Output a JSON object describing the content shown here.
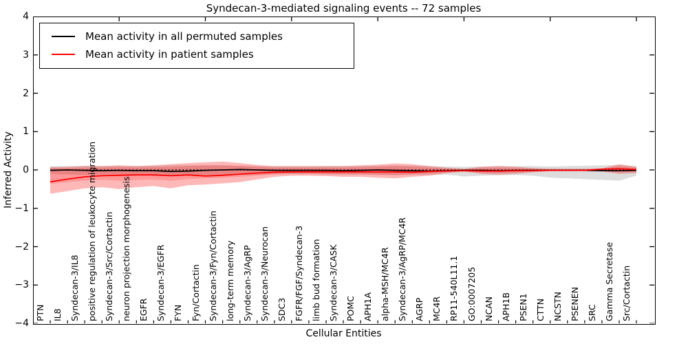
{
  "title": "Syndecan-3-mediated signaling events -- 72 samples",
  "axes": {
    "ylabel": "Inferred Activity",
    "xlabel": "Cellular Entities",
    "yticks": [
      "4",
      "3",
      "2",
      "1",
      "0",
      "−1",
      "−2",
      "−3",
      "−4"
    ],
    "ytick_values": [
      4,
      3,
      2,
      1,
      0,
      -1,
      -2,
      -3,
      -4
    ]
  },
  "legend": {
    "items": [
      {
        "label": "Mean activity in all permuted samples",
        "color": "#000000"
      },
      {
        "label": "Mean activity in patient samples",
        "color": "#ff0000"
      }
    ]
  },
  "chart_data": {
    "type": "line",
    "title": "Syndecan-3-mediated signaling events -- 72 samples",
    "xlabel": "Cellular Entities",
    "ylabel": "Inferred Activity",
    "ylim": [
      -4,
      4
    ],
    "grid": false,
    "legend_position": "upper left",
    "zero_line": {
      "y": 0,
      "style": "dotted",
      "color": "#000000"
    },
    "categories": [
      "PTN",
      "IL8",
      "Syndecan-3/IL8",
      "positive regulation of leukocyte migration",
      "Syndecan-3/Src/Cortactin",
      "neuron projection morphogenesis",
      "EGFR",
      "Syndecan-3/EGFR",
      "FYN",
      "Fyn/Cortactin",
      "Syndecan-3/Fyn/Cortactin",
      "long-term memory",
      "Syndecan-3/AgRP",
      "Syndecan-3/Neurocan",
      "SDC3",
      "FGFR/FGF/Syndecan-3",
      "limb bud formation",
      "Syndecan-3/CASK",
      "POMC",
      "APH1A",
      "alpha-MSH/MC4R",
      "Syndecan-3/AgRP/MC4R",
      "AGRP",
      "MC4R",
      "RP11-540L11.1",
      "GO:0007205",
      "NCAN",
      "APH1B",
      "PSEN1",
      "CTTN",
      "NCSTN",
      "PSENEN",
      "SRC",
      "Gamma Secretase",
      "Src/Cortactin"
    ],
    "series": [
      {
        "name": "Mean activity in all permuted samples",
        "color": "#000000",
        "values": [
          -0.01,
          0.0,
          -0.01,
          -0.02,
          -0.01,
          -0.02,
          -0.02,
          -0.04,
          -0.03,
          -0.01,
          0.0,
          0.01,
          0.0,
          -0.01,
          -0.01,
          -0.01,
          -0.01,
          -0.02,
          -0.01,
          0.0,
          -0.01,
          -0.02,
          -0.03,
          -0.02,
          -0.01,
          -0.01,
          -0.02,
          -0.01,
          -0.01,
          -0.01,
          -0.01,
          -0.01,
          -0.02,
          -0.02,
          -0.01
        ]
      },
      {
        "name": "Mean activity in patient samples",
        "color": "#ff0000",
        "values": [
          -0.31,
          -0.24,
          -0.18,
          -0.15,
          -0.14,
          -0.13,
          -0.13,
          -0.15,
          -0.13,
          -0.16,
          -0.14,
          -0.11,
          -0.08,
          -0.06,
          -0.05,
          -0.05,
          -0.05,
          -0.05,
          -0.05,
          -0.05,
          -0.05,
          -0.06,
          -0.04,
          -0.03,
          -0.02,
          -0.03,
          -0.03,
          -0.02,
          -0.02,
          -0.01,
          -0.01,
          -0.01,
          0.02,
          0.03,
          0.01
        ]
      }
    ],
    "bands": [
      {
        "name": "permuted-range",
        "color": "#999999",
        "opacity": 0.33,
        "upper": [
          0.1,
          0.1,
          0.11,
          0.1,
          0.1,
          0.1,
          0.11,
          0.12,
          0.12,
          0.13,
          0.12,
          0.11,
          0.1,
          0.09,
          0.09,
          0.09,
          0.1,
          0.1,
          0.1,
          0.11,
          0.12,
          0.11,
          0.1,
          0.09,
          0.08,
          0.09,
          0.1,
          0.1,
          0.1,
          0.09,
          0.1,
          0.11,
          0.12,
          0.13,
          0.1
        ],
        "lower": [
          -0.1,
          -0.12,
          -0.13,
          -0.12,
          -0.12,
          -0.12,
          -0.13,
          -0.14,
          -0.14,
          -0.15,
          -0.14,
          -0.13,
          -0.12,
          -0.11,
          -0.11,
          -0.11,
          -0.12,
          -0.12,
          -0.12,
          -0.13,
          -0.14,
          -0.13,
          -0.12,
          -0.12,
          -0.17,
          -0.15,
          -0.14,
          -0.13,
          -0.15,
          -0.2,
          -0.22,
          -0.24,
          -0.26,
          -0.28,
          -0.15
        ]
      },
      {
        "name": "patient-outer",
        "color": "#ff0000",
        "opacity": 0.28,
        "upper": [
          0.07,
          0.08,
          0.1,
          0.1,
          0.12,
          0.1,
          0.12,
          0.15,
          0.18,
          0.2,
          0.22,
          0.18,
          0.13,
          0.1,
          0.1,
          0.1,
          0.1,
          0.1,
          0.12,
          0.14,
          0.17,
          0.15,
          0.1,
          0.06,
          0.03,
          0.08,
          0.1,
          0.08,
          0.05,
          0.03,
          0.03,
          0.03,
          0.04,
          0.15,
          0.08
        ],
        "lower": [
          -0.62,
          -0.55,
          -0.48,
          -0.45,
          -0.5,
          -0.45,
          -0.42,
          -0.48,
          -0.4,
          -0.38,
          -0.35,
          -0.32,
          -0.25,
          -0.18,
          -0.15,
          -0.15,
          -0.16,
          -0.18,
          -0.18,
          -0.2,
          -0.22,
          -0.18,
          -0.15,
          -0.08,
          -0.04,
          -0.1,
          -0.12,
          -0.1,
          -0.06,
          -0.03,
          -0.03,
          -0.03,
          -0.04,
          -0.1,
          -0.08
        ]
      },
      {
        "name": "patient-inner",
        "color": "#ff0000",
        "opacity": 0.17,
        "upper": [
          0.05,
          0.05,
          0.06,
          0.06,
          0.07,
          0.06,
          0.07,
          0.08,
          0.1,
          0.11,
          0.12,
          0.1,
          0.08,
          0.06,
          0.06,
          0.06,
          0.06,
          0.06,
          0.07,
          0.08,
          0.1,
          0.09,
          0.06,
          0.04,
          0.02,
          0.05,
          0.06,
          0.05,
          0.03,
          0.02,
          0.02,
          0.02,
          0.03,
          0.09,
          0.05
        ],
        "lower": [
          -0.36,
          -0.32,
          -0.28,
          -0.26,
          -0.28,
          -0.26,
          -0.25,
          -0.28,
          -0.24,
          -0.22,
          -0.2,
          -0.18,
          -0.15,
          -0.11,
          -0.09,
          -0.09,
          -0.1,
          -0.11,
          -0.11,
          -0.12,
          -0.13,
          -0.11,
          -0.09,
          -0.05,
          -0.03,
          -0.06,
          -0.07,
          -0.06,
          -0.04,
          -0.02,
          -0.02,
          -0.02,
          -0.03,
          -0.06,
          -0.05
        ]
      }
    ]
  }
}
